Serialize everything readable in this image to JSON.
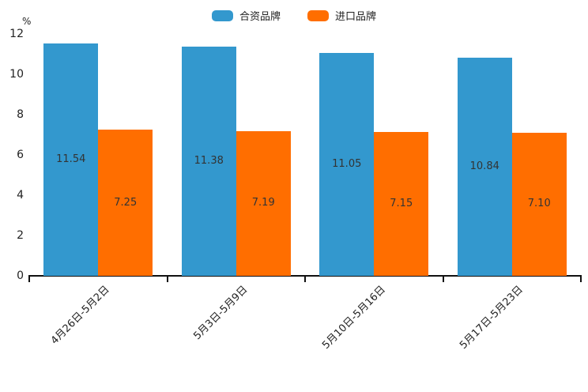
{
  "chart_data": {
    "type": "bar",
    "title": "",
    "unit_label": "%",
    "categories": [
      "4月26日-5月2日",
      "5月3日-5月9日",
      "5月10日-5月16日",
      "5月17日-5月23日"
    ],
    "series": [
      {
        "name": "合资品牌",
        "color": "#3398CE",
        "values": [
          11.54,
          11.38,
          11.05,
          10.84
        ]
      },
      {
        "name": "进口品牌",
        "color": "#FF6E00",
        "values": [
          7.25,
          7.19,
          7.15,
          7.1
        ]
      }
    ],
    "value_labels": [
      [
        "11.54",
        "11.38",
        "11.05",
        "10.84"
      ],
      [
        "7.25",
        "7.19",
        "7.15",
        "7.10"
      ]
    ],
    "ylim": [
      0,
      12
    ],
    "yticks": [
      0,
      2,
      4,
      6,
      8,
      10,
      12
    ],
    "grid": false,
    "legend_position": "top",
    "value_label_color": "#333333",
    "axis_color": "#111111"
  }
}
